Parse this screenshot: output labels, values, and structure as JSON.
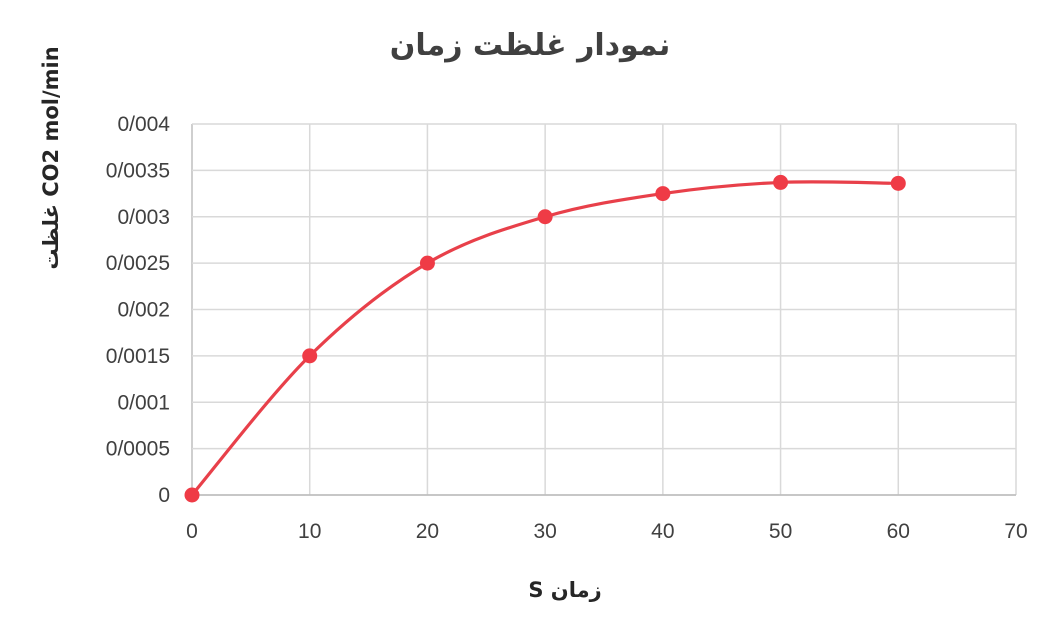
{
  "chart_data": {
    "type": "line",
    "title": "نمودار غلظت زمان",
    "xlabel": "زمان S",
    "ylabel": "CO2 mol/min غلظت",
    "x": [
      0,
      10,
      20,
      30,
      40,
      50,
      60
    ],
    "series": [
      {
        "values": [
          0,
          0.0015,
          0.0025,
          0.003,
          0.00325,
          0.00337,
          0.00336
        ]
      }
    ],
    "xlim": [
      0,
      70
    ],
    "ylim": [
      0,
      0.004
    ],
    "x_ticks": [
      "0",
      "10",
      "20",
      "30",
      "40",
      "50",
      "60",
      "70"
    ],
    "y_ticks": [
      "0",
      "0/0005",
      "0/001",
      "0/0015",
      "0/002",
      "0/0025",
      "0/003",
      "0/0035",
      "0/004"
    ],
    "grid": true,
    "legend": "none",
    "smooth": true,
    "colors": {
      "line": "#e8404a",
      "marker": "#ef3b46"
    }
  }
}
